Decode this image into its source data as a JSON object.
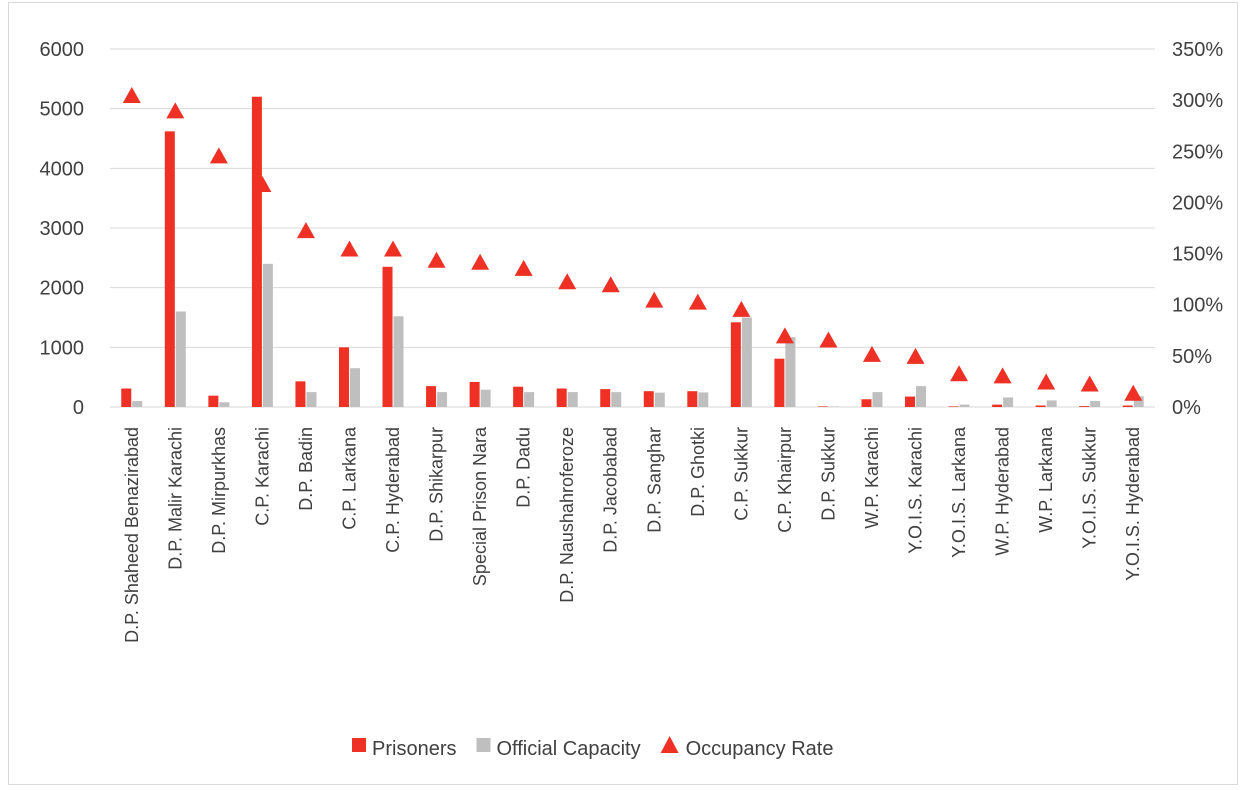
{
  "chart_data": {
    "type": "bar",
    "categories": [
      "D.P. Shaheed Benazirabad",
      "D.P. Malir Karachi",
      "D.P. Mirpurkhas",
      "C.P. Karachi",
      "D.P. Badin",
      "C.P. Larkana",
      "C.P. Hyderabad",
      "D.P. Shikarpur",
      "Special Prison Nara",
      "D.P. Dadu",
      "D.P. Naushahroferoze",
      "D.P. Jacobabad",
      "D.P. Sanghar",
      "D.P. Ghotki",
      "C.P. Sukkur",
      "C.P. Khairpur",
      "D.P. Sukkur",
      "W.P. Karachi",
      "Y.O.I.S. Karachi",
      "Y.O.I.S. Larkana",
      "W.P. Hyderabad",
      "W.P. Larkana",
      "Y.O.I.S. Sukkur",
      "Y.O.I.S. Hyderabad"
    ],
    "series": [
      {
        "name": "Prisoners",
        "axis": "left",
        "kind": "bar",
        "color": "#ee3124",
        "values": [
          310,
          4620,
          190,
          5200,
          430,
          1000,
          2350,
          350,
          420,
          340,
          310,
          300,
          265,
          265,
          1420,
          810,
          10,
          130,
          175,
          10,
          40,
          25,
          15,
          25
        ]
      },
      {
        "name": "Official Capacity",
        "axis": "left",
        "kind": "bar",
        "color": "#bfbfbf",
        "values": [
          100,
          1600,
          80,
          2400,
          250,
          650,
          1520,
          250,
          290,
          250,
          250,
          250,
          240,
          245,
          1500,
          1170,
          10,
          250,
          350,
          40,
          160,
          110,
          100,
          180
        ]
      },
      {
        "name": "Occupancy Rate",
        "axis": "right",
        "kind": "marker",
        "color": "#ee3124",
        "values": [
          3.04,
          2.89,
          2.45,
          2.17,
          1.72,
          1.54,
          1.54,
          1.43,
          1.41,
          1.35,
          1.22,
          1.19,
          1.04,
          1.02,
          0.95,
          0.69,
          0.65,
          0.51,
          0.49,
          0.32,
          0.3,
          0.24,
          0.22,
          0.13
        ]
      }
    ],
    "y_left": {
      "min": 0,
      "max": 6000,
      "ticks": [
        "0",
        "1000",
        "2000",
        "3000",
        "4000",
        "5000",
        "6000"
      ]
    },
    "y_right": {
      "min": 0,
      "max": 3.5,
      "ticks": [
        "0%",
        "50%",
        "100%",
        "150%",
        "200%",
        "250%",
        "300%",
        "350%"
      ]
    },
    "title": "",
    "xlabel": "",
    "ylabel": "",
    "grid": true,
    "legend_position": "bottom"
  }
}
